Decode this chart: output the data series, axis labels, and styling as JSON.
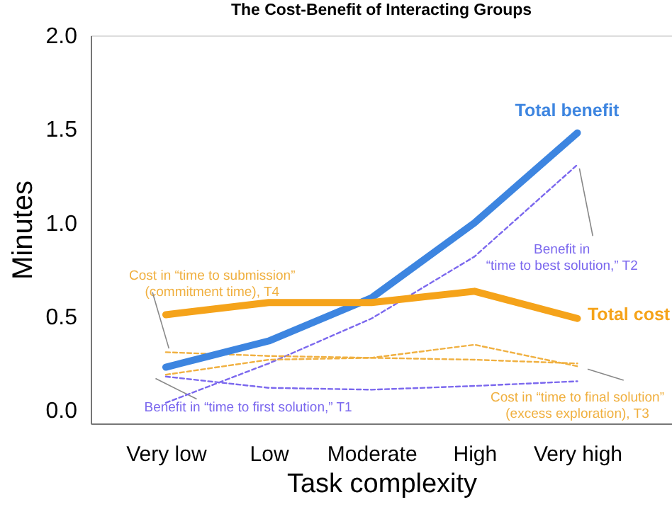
{
  "chart_data": {
    "type": "line",
    "title": "The Cost-Benefit of Interacting Groups",
    "xlabel": "Task complexity",
    "ylabel": "Minutes",
    "categories": [
      "Very low",
      "Low",
      "Moderate",
      "High",
      "Very high"
    ],
    "ylim": [
      -0.07,
      2.0
    ],
    "yticks": [
      {
        "value": 0,
        "label": "0.0"
      },
      {
        "value": 0.5,
        "label": "0.5"
      },
      {
        "value": 1.0,
        "label": "1.0"
      },
      {
        "value": 1.5,
        "label": "1.5"
      },
      {
        "value": 2.0,
        "label": "2.0"
      }
    ],
    "grid": false,
    "marker": "none",
    "series": [
      {
        "name": "Benefit in “time to first solution,” T1",
        "color": "#7b68ee",
        "line_style": "dashed",
        "values": [
          0.18,
          0.12,
          0.11,
          0.13,
          0.155
        ]
      },
      {
        "name": "Benefit in\n“time to best solution,” T2",
        "color": "#7b68ee",
        "line_style": "dashed",
        "values": [
          0.04,
          0.25,
          0.49,
          0.82,
          1.31
        ]
      },
      {
        "name": "Cost in “time to final solution”\n(excess exploration), T3",
        "color": "#f0b040",
        "line_style": "dashed",
        "values": [
          0.19,
          0.27,
          0.28,
          0.35,
          0.235
        ]
      },
      {
        "name": "Cost in “time to submission”\n(commitment time), T4",
        "color": "#f0b040",
        "line_style": "dashed",
        "values": [
          0.31,
          0.29,
          0.28,
          0.27,
          0.25
        ]
      },
      {
        "name": "Total benefit",
        "color": "#3d85e0",
        "line_style": "solid",
        "values": [
          0.23,
          0.37,
          0.6,
          1.0,
          1.48
        ]
      },
      {
        "name": "Total cost",
        "color": "#f5a31a",
        "line_style": "solid",
        "values": [
          0.51,
          0.575,
          0.575,
          0.635,
          0.49
        ]
      }
    ]
  }
}
